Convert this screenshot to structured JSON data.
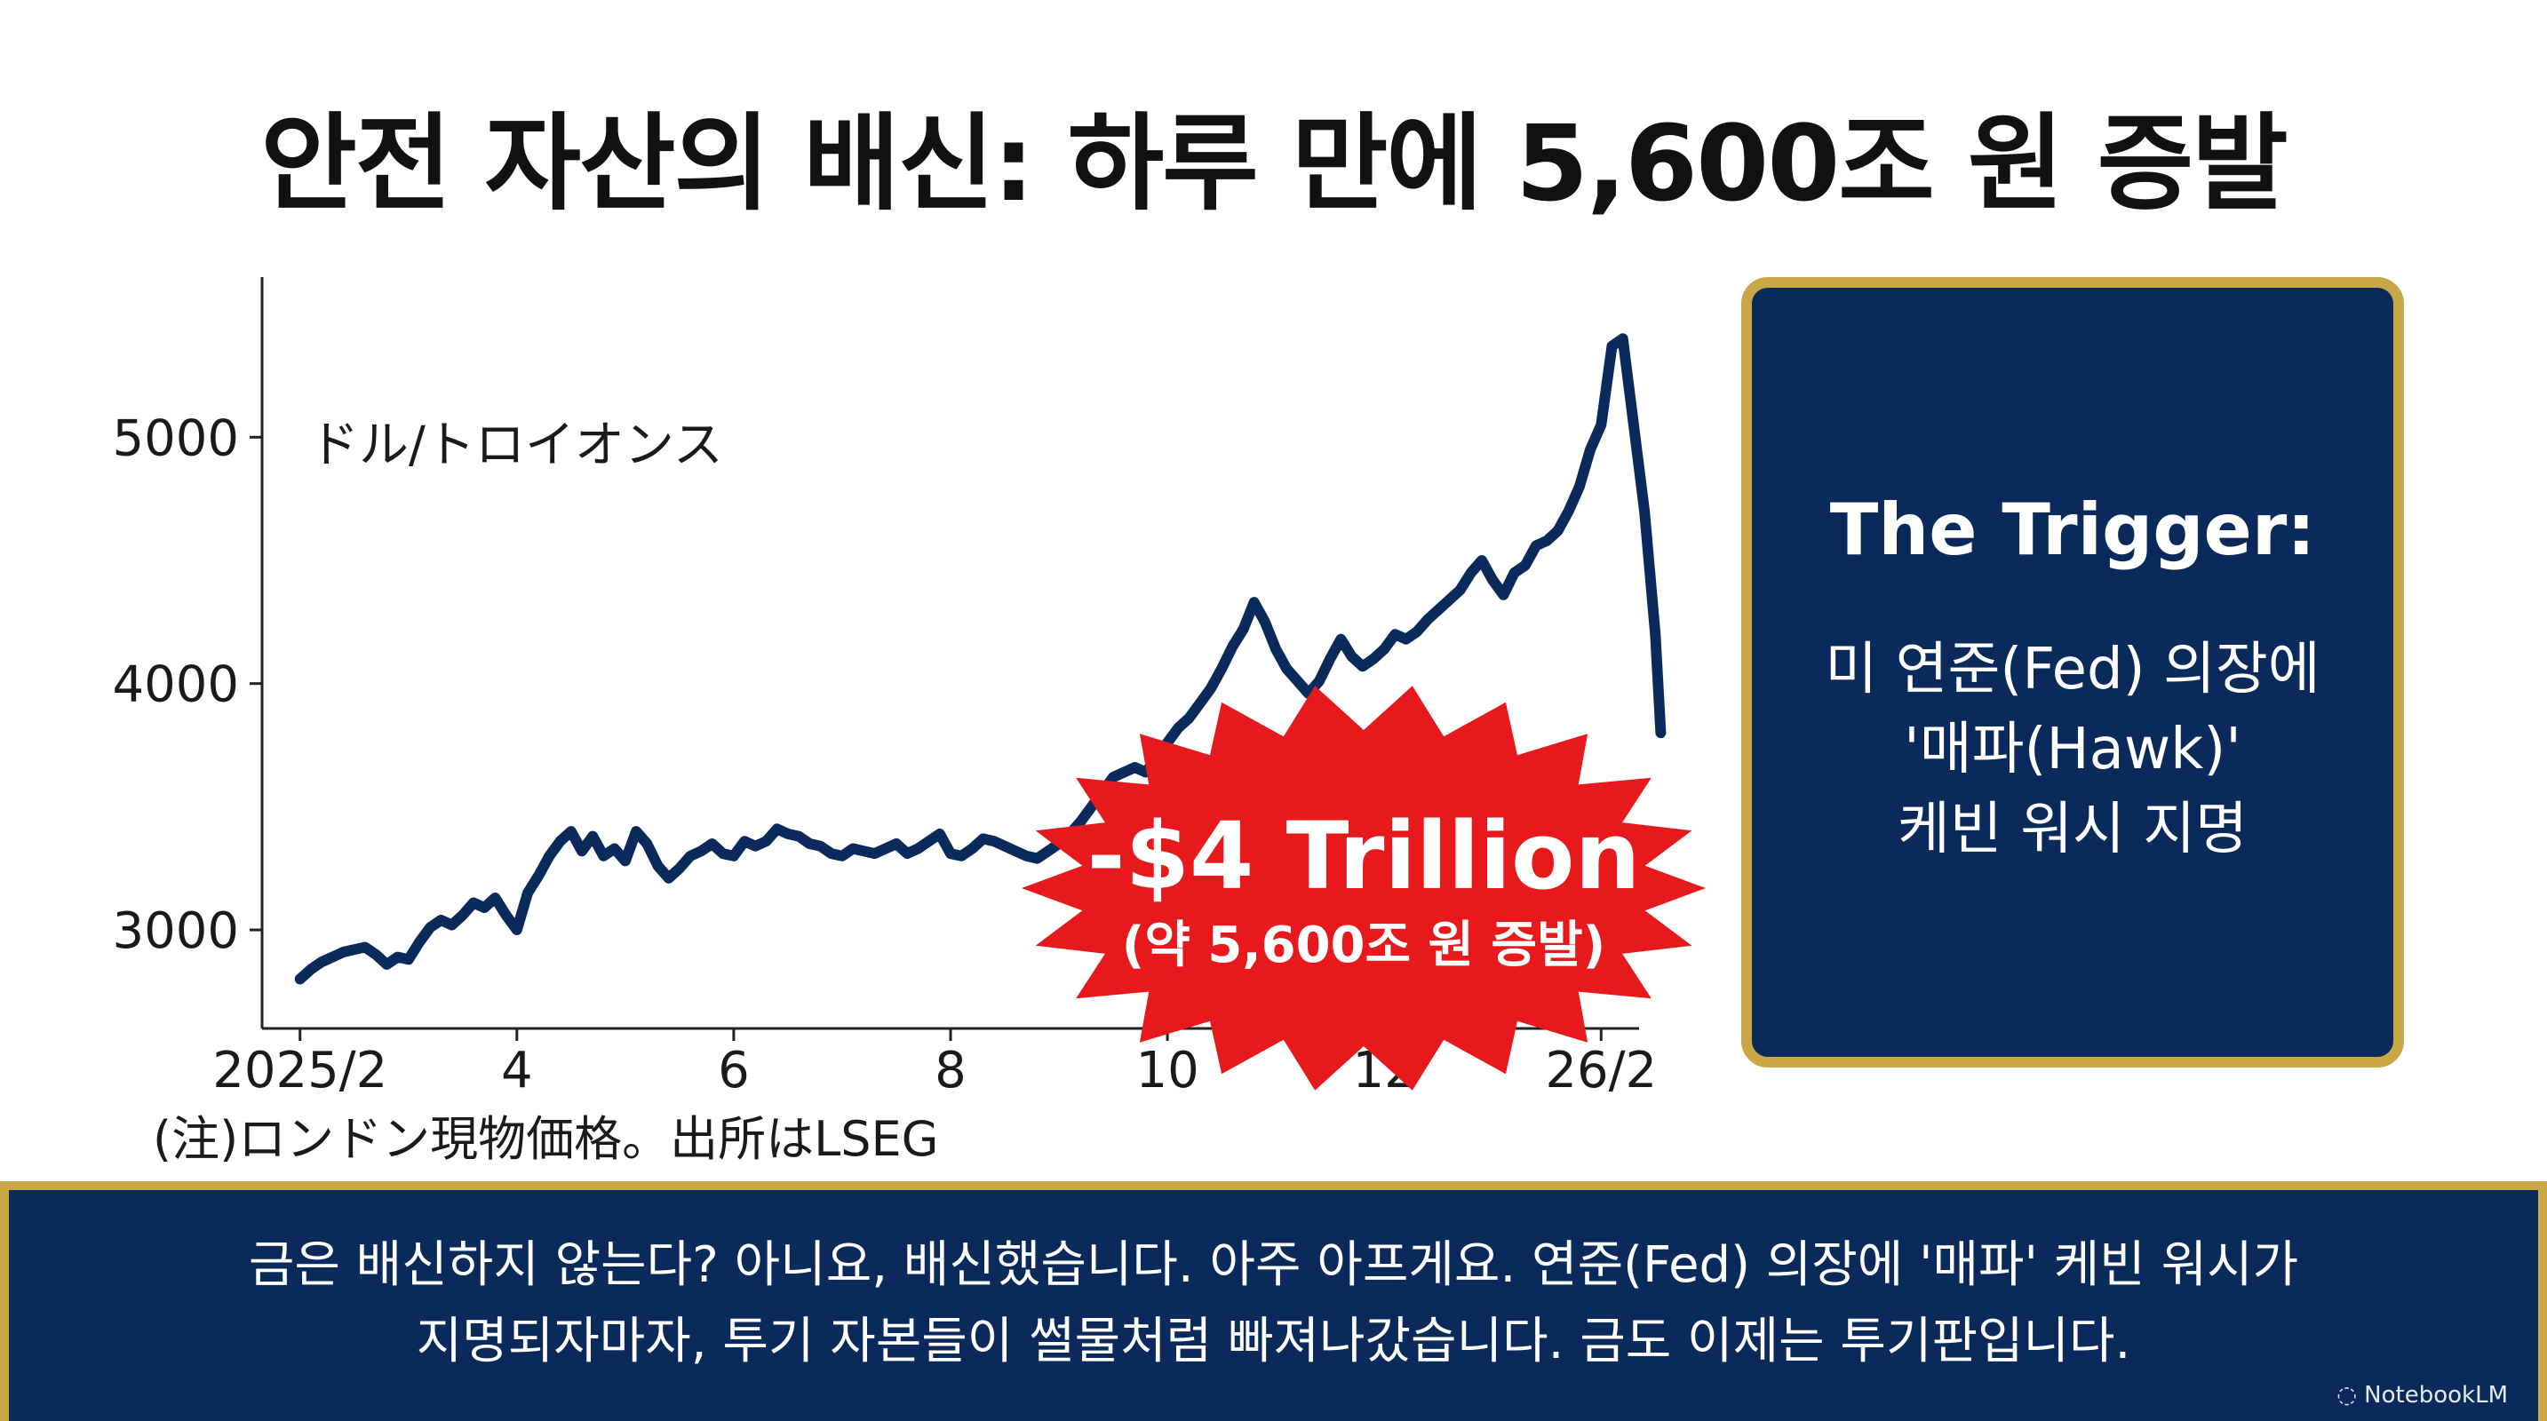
{
  "title": "안전 자산의 배신: 하루 만에 5,600조 원 증발",
  "note": "(注)ロンドン現物価格。出所はLSEG",
  "trigger": {
    "title": "The Trigger:",
    "lines": [
      "미 연준(Fed) 의장에",
      "'매파(Hawk)'",
      "케빈 워시 지명"
    ]
  },
  "caption": {
    "lines": [
      "금은 배신하지 않는다? 아니요, 배신했습니다. 아주 아프게요. 연준(Fed) 의장에 '매파' 케빈 워시가",
      "지명되자마자, 투기 자본들이 썰물처럼 빠져나갔습니다. 금도 이제는 투기판입니다."
    ]
  },
  "brand": "NotebookLM",
  "colors": {
    "line": "#0b2a5c",
    "burst": "#e8191d",
    "panel": "#0b2a5c",
    "gold_border": "#c9a646"
  },
  "chart_data": {
    "type": "line",
    "ylabel": "ドル/トロイオンス",
    "y_ticks": [
      3000,
      4000,
      5000
    ],
    "x_ticks": [
      {
        "label": "2025/2",
        "x": 0
      },
      {
        "label": "4",
        "x": 2
      },
      {
        "label": "6",
        "x": 4
      },
      {
        "label": "8",
        "x": 6
      },
      {
        "label": "10",
        "x": 8
      },
      {
        "label": "12",
        "x": 10
      },
      {
        "label": "26/2",
        "x": 12
      }
    ],
    "ylim": [
      2600,
      5650
    ],
    "xlim": [
      -0.35,
      12.35
    ],
    "x_unit": "months since 2025/2",
    "grid": false,
    "series": [
      {
        "points": [
          [
            0.0,
            2800
          ],
          [
            0.1,
            2840
          ],
          [
            0.2,
            2870
          ],
          [
            0.3,
            2890
          ],
          [
            0.4,
            2910
          ],
          [
            0.5,
            2920
          ],
          [
            0.6,
            2930
          ],
          [
            0.7,
            2900
          ],
          [
            0.8,
            2860
          ],
          [
            0.9,
            2890
          ],
          [
            1.0,
            2880
          ],
          [
            1.1,
            2950
          ],
          [
            1.2,
            3010
          ],
          [
            1.3,
            3040
          ],
          [
            1.4,
            3020
          ],
          [
            1.5,
            3060
          ],
          [
            1.6,
            3110
          ],
          [
            1.7,
            3090
          ],
          [
            1.8,
            3130
          ],
          [
            1.9,
            3060
          ],
          [
            2.0,
            3000
          ],
          [
            2.1,
            3150
          ],
          [
            2.2,
            3220
          ],
          [
            2.3,
            3300
          ],
          [
            2.4,
            3360
          ],
          [
            2.5,
            3400
          ],
          [
            2.6,
            3320
          ],
          [
            2.7,
            3380
          ],
          [
            2.8,
            3300
          ],
          [
            2.9,
            3330
          ],
          [
            3.0,
            3280
          ],
          [
            3.1,
            3400
          ],
          [
            3.2,
            3350
          ],
          [
            3.3,
            3260
          ],
          [
            3.4,
            3210
          ],
          [
            3.5,
            3250
          ],
          [
            3.6,
            3300
          ],
          [
            3.7,
            3320
          ],
          [
            3.8,
            3350
          ],
          [
            3.9,
            3310
          ],
          [
            4.0,
            3300
          ],
          [
            4.1,
            3360
          ],
          [
            4.2,
            3340
          ],
          [
            4.3,
            3360
          ],
          [
            4.4,
            3410
          ],
          [
            4.5,
            3390
          ],
          [
            4.6,
            3380
          ],
          [
            4.7,
            3350
          ],
          [
            4.8,
            3340
          ],
          [
            4.9,
            3310
          ],
          [
            5.0,
            3300
          ],
          [
            5.1,
            3330
          ],
          [
            5.2,
            3320
          ],
          [
            5.3,
            3310
          ],
          [
            5.4,
            3330
          ],
          [
            5.5,
            3350
          ],
          [
            5.6,
            3310
          ],
          [
            5.7,
            3330
          ],
          [
            5.8,
            3360
          ],
          [
            5.9,
            3390
          ],
          [
            6.0,
            3310
          ],
          [
            6.1,
            3300
          ],
          [
            6.2,
            3330
          ],
          [
            6.3,
            3370
          ],
          [
            6.4,
            3360
          ],
          [
            6.5,
            3340
          ],
          [
            6.6,
            3320
          ],
          [
            6.7,
            3300
          ],
          [
            6.8,
            3290
          ],
          [
            6.9,
            3320
          ],
          [
            7.0,
            3350
          ],
          [
            7.1,
            3390
          ],
          [
            7.2,
            3440
          ],
          [
            7.3,
            3500
          ],
          [
            7.4,
            3560
          ],
          [
            7.5,
            3620
          ],
          [
            7.6,
            3640
          ],
          [
            7.7,
            3660
          ],
          [
            7.8,
            3640
          ],
          [
            7.9,
            3700
          ],
          [
            8.0,
            3760
          ],
          [
            8.1,
            3820
          ],
          [
            8.2,
            3860
          ],
          [
            8.3,
            3920
          ],
          [
            8.4,
            3980
          ],
          [
            8.5,
            4060
          ],
          [
            8.6,
            4150
          ],
          [
            8.7,
            4220
          ],
          [
            8.8,
            4330
          ],
          [
            8.9,
            4250
          ],
          [
            9.0,
            4140
          ],
          [
            9.1,
            4060
          ],
          [
            9.2,
            4010
          ],
          [
            9.3,
            3960
          ],
          [
            9.4,
            4010
          ],
          [
            9.5,
            4100
          ],
          [
            9.6,
            4180
          ],
          [
            9.7,
            4110
          ],
          [
            9.8,
            4070
          ],
          [
            9.9,
            4100
          ],
          [
            10.0,
            4140
          ],
          [
            10.1,
            4200
          ],
          [
            10.2,
            4180
          ],
          [
            10.3,
            4210
          ],
          [
            10.4,
            4260
          ],
          [
            10.5,
            4300
          ],
          [
            10.6,
            4340
          ],
          [
            10.7,
            4380
          ],
          [
            10.8,
            4450
          ],
          [
            10.9,
            4500
          ],
          [
            11.0,
            4420
          ],
          [
            11.1,
            4360
          ],
          [
            11.2,
            4450
          ],
          [
            11.3,
            4480
          ],
          [
            11.4,
            4560
          ],
          [
            11.5,
            4580
          ],
          [
            11.6,
            4620
          ],
          [
            11.7,
            4700
          ],
          [
            11.8,
            4800
          ],
          [
            11.9,
            4950
          ],
          [
            12.0,
            5050
          ],
          [
            12.1,
            5370
          ],
          [
            12.2,
            5400
          ],
          [
            12.3,
            5050
          ],
          [
            12.4,
            4700
          ],
          [
            12.5,
            4200
          ],
          [
            12.55,
            3800
          ]
        ]
      }
    ],
    "annotation": {
      "text": "-$4 Trillion",
      "subtext": "(약 5,600조 원 증발)"
    }
  }
}
